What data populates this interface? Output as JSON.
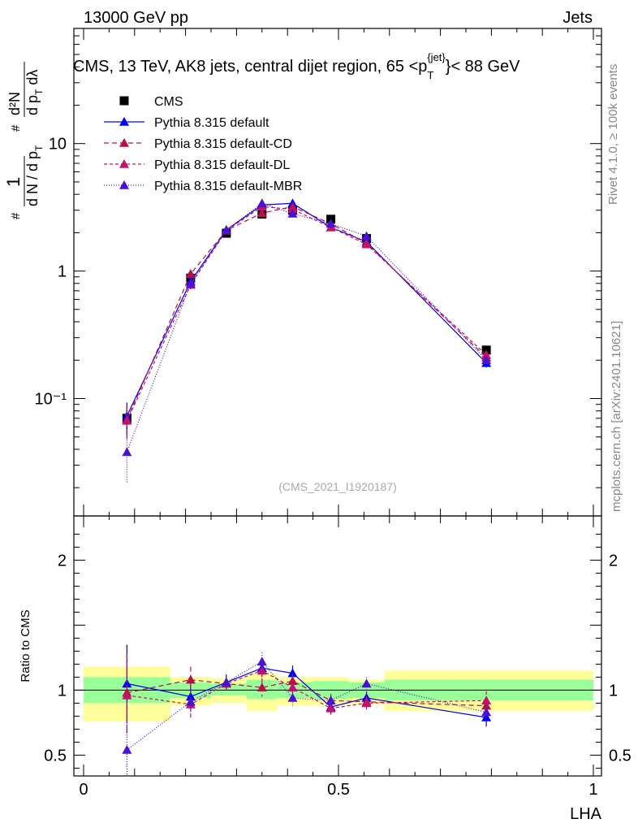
{
  "header": {
    "left": "13000 GeV pp",
    "right": "Jets"
  },
  "title": {
    "main": "CMS, 13 TeV, AK8 jets, central dijet region, 65 <p",
    "sub": "T",
    "sup": "{jet}",
    "end": "}< 88 GeV"
  },
  "ylabel": {
    "frac_num": "1",
    "frac_den": "d N / d p",
    "frac_den_sub": "T",
    "frac_hash": "#",
    "num2": "d²N",
    "den2": "d p",
    "den2_sub": "T",
    "den2_end": " dλ",
    "hash2": "#"
  },
  "side_labels": {
    "rivet": "Rivet 4.1.0, ≥ 100k events",
    "mcplots": "mcplots.cern.ch [arXiv:2401.10621]"
  },
  "watermark": "(CMS_2021_I1920187)",
  "colors": {
    "data": "#000000",
    "default": "#0000ee",
    "cd": "#b5104a",
    "dl": "#c4116a",
    "mbr": "#4b10d6",
    "band_inner": "#99ff99",
    "band_outer": "#ffff99"
  },
  "chart_data": [
    {
      "type": "scatter",
      "panel": "main",
      "xlabel": "LHA",
      "ylabel": "1/(dN/dpT) d²N/(dpT dλ)",
      "yscale": "log",
      "xlim": [
        0,
        1
      ],
      "ylim": [
        0.012,
        80
      ],
      "y_ticks": [
        0.1,
        1,
        10
      ],
      "y_tick_labels": [
        "10⁻¹",
        "1",
        "10"
      ],
      "x": [
        0.085,
        0.21,
        0.28,
        0.35,
        0.41,
        0.485,
        0.555,
        0.79
      ],
      "series": [
        {
          "name": "CMS",
          "key": "data",
          "marker": "square",
          "values": [
            0.07,
            0.88,
            1.98,
            2.8,
            3.0,
            2.55,
            1.8,
            0.24
          ],
          "err": [
            0.018,
            0.09,
            0.15,
            0.15,
            0.15,
            0.12,
            0.1,
            0.02
          ]
        },
        {
          "name": "Pythia 8.315 default",
          "key": "default",
          "marker": "triangle",
          "dash": "",
          "values": [
            0.073,
            0.83,
            2.1,
            3.3,
            3.4,
            2.2,
            1.7,
            0.19
          ],
          "err": [
            0.02,
            0.06,
            0.1,
            0.15,
            0.15,
            0.1,
            0.08,
            0.015
          ]
        },
        {
          "name": "Pythia 8.315 default-CD",
          "key": "cd",
          "marker": "triangle",
          "dash": "6,4",
          "values": [
            0.068,
            0.95,
            2.08,
            2.85,
            3.2,
            2.35,
            1.65,
            0.21
          ],
          "err": [
            0.02,
            0.06,
            0.1,
            0.15,
            0.15,
            0.1,
            0.08,
            0.015
          ]
        },
        {
          "name": "Pythia 8.315 default-DL",
          "key": "dl",
          "marker": "triangle",
          "dash": "4,3",
          "values": [
            0.067,
            0.78,
            2.08,
            3.2,
            3.05,
            2.2,
            1.62,
            0.22
          ],
          "err": [
            0.02,
            0.06,
            0.1,
            0.15,
            0.15,
            0.1,
            0.08,
            0.015
          ]
        },
        {
          "name": "Pythia 8.315 default-MBR",
          "key": "mbr",
          "marker": "triangle",
          "dash": "1,2",
          "values": [
            0.038,
            0.8,
            2.1,
            3.4,
            2.82,
            2.35,
            1.88,
            0.2
          ],
          "err": [
            0.016,
            0.06,
            0.1,
            0.15,
            0.15,
            0.1,
            0.08,
            0.015
          ]
        }
      ]
    },
    {
      "type": "scatter",
      "panel": "ratio",
      "xlabel": "LHA",
      "ylabel": "Ratio to CMS",
      "xlim": [
        0,
        1
      ],
      "ylim": [
        0.34,
        2.34
      ],
      "y_ticks": [
        0.5,
        1,
        2
      ],
      "y_tick_labels": [
        "0.5",
        "1",
        "2"
      ],
      "x_ticks": [
        0,
        0.5,
        1
      ],
      "x_tick_labels": [
        "0",
        "0.5",
        "1"
      ],
      "x": [
        0.085,
        0.21,
        0.28,
        0.35,
        0.41,
        0.485,
        0.555,
        0.79
      ],
      "band_edges": [
        0,
        0.17,
        0.25,
        0.32,
        0.38,
        0.45,
        0.52,
        0.59,
        1.0
      ],
      "band_inner": [
        [
          0.9,
          1.1
        ],
        [
          0.94,
          1.06
        ],
        [
          0.96,
          1.05
        ],
        [
          0.93,
          1.08
        ],
        [
          0.94,
          1.06
        ],
        [
          0.93,
          1.07
        ],
        [
          0.94,
          1.06
        ],
        [
          0.92,
          1.08
        ]
      ],
      "band_outer": [
        [
          0.76,
          1.18
        ],
        [
          0.88,
          1.1
        ],
        [
          0.9,
          1.09
        ],
        [
          0.84,
          1.13
        ],
        [
          0.88,
          1.1
        ],
        [
          0.88,
          1.1
        ],
        [
          0.89,
          1.08
        ],
        [
          0.84,
          1.15
        ]
      ],
      "series": [
        {
          "key": "default",
          "values": [
            1.05,
            0.95,
            1.06,
            1.17,
            1.13,
            0.87,
            0.94,
            0.79
          ],
          "err": [
            0.3,
            0.1,
            0.06,
            0.07,
            0.06,
            0.05,
            0.05,
            0.07
          ]
        },
        {
          "key": "cd",
          "values": [
            0.98,
            1.08,
            1.05,
            1.02,
            1.07,
            0.92,
            0.91,
            0.88
          ],
          "err": [
            0.3,
            0.1,
            0.06,
            0.07,
            0.06,
            0.05,
            0.05,
            0.07
          ]
        },
        {
          "key": "dl",
          "values": [
            0.96,
            0.89,
            1.05,
            1.15,
            1.02,
            0.86,
            0.9,
            0.92
          ],
          "err": [
            0.3,
            0.1,
            0.06,
            0.07,
            0.06,
            0.05,
            0.05,
            0.07
          ]
        },
        {
          "key": "mbr",
          "values": [
            0.54,
            0.91,
            1.06,
            1.22,
            0.94,
            0.92,
            1.05,
            0.83
          ],
          "err": [
            0.25,
            0.1,
            0.06,
            0.07,
            0.06,
            0.05,
            0.05,
            0.07
          ]
        }
      ]
    }
  ]
}
